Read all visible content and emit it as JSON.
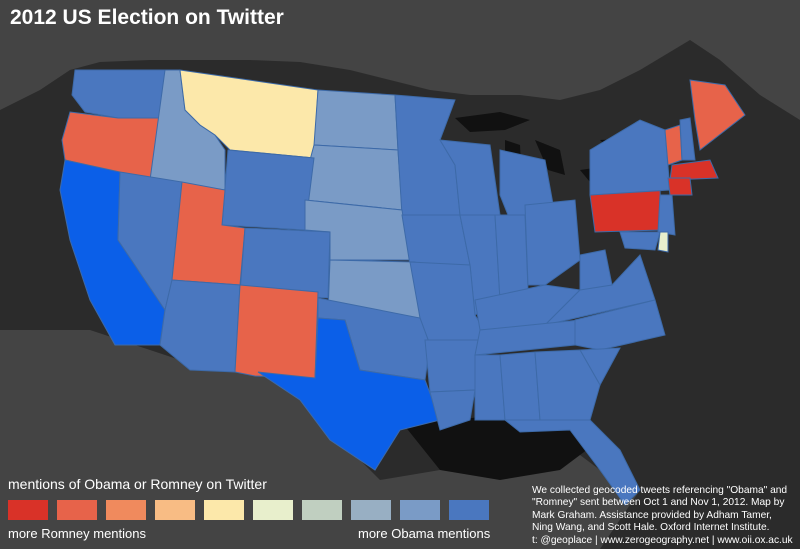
{
  "title": "2012 US Election on Twitter",
  "legend": {
    "title": "mentions of Obama or Romney on Twitter",
    "low_label": "more Romney mentions",
    "high_label": "more Obama mentions",
    "swatches": [
      "#d93228",
      "#e7634a",
      "#f08a5d",
      "#f8bc84",
      "#fce8aa",
      "#e8efcc",
      "#c0cfc0",
      "#98afc3",
      "#7a9bc6",
      "#4a77bf"
    ]
  },
  "credits": [
    "We collected geocoded tweets referencing \"Obama\" and",
    "\"Romney\" sent between Oct 1 and Nov 1, 2012. Map by",
    "Mark Graham. Assistance provided by Adham Tamer,",
    "Ning Wang, and Scott Hale. Oxford Internet Institute.",
    "t: @geoplace | www.zerogeography.net | www.oii.ox.ac.uk"
  ],
  "colors": {
    "background": "#2b2b2b",
    "land": "#444444",
    "water": "#111111",
    "state_border": "#3d6aa8",
    "romney_strong": "#d93228",
    "romney": "#e7634a",
    "neutral_warm": "#fce8aa",
    "obama_light": "#7a9bc6",
    "obama": "#4a77bf",
    "obama_strong": "#0b5fe8"
  },
  "states": {
    "WA": "#4a77bf",
    "OR": "#e7634a",
    "ID": "#7a9bc6",
    "MT": "#fce8aa",
    "ND": "#7a9bc6",
    "SD": "#7a9bc6",
    "MN": "#4a77bf",
    "WI": "#4a77bf",
    "MI": "#4a77bf",
    "WY": "#4a77bf",
    "NE": "#7a9bc6",
    "IA": "#4a77bf",
    "IL": "#4a77bf",
    "IN": "#4a77bf",
    "OH": "#4a77bf",
    "CA": "#0b5fe8",
    "NV": "#4a77bf",
    "UT": "#e7634a",
    "CO": "#4a77bf",
    "KS": "#7a9bc6",
    "MO": "#4a77bf",
    "KY": "#4a77bf",
    "WV": "#4a77bf",
    "VA": "#4a77bf",
    "AZ": "#4a77bf",
    "NM": "#e7634a",
    "OK": "#4a77bf",
    "TX": "#0b5fe8",
    "AR": "#4a77bf",
    "TN": "#4a77bf",
    "NC": "#4a77bf",
    "SC": "#4a77bf",
    "LA": "#4a77bf",
    "MS": "#4a77bf",
    "AL": "#4a77bf",
    "GA": "#4a77bf",
    "FL": "#4a77bf",
    "PA": "#d93228",
    "NY": "#4a77bf",
    "VT": "#e7634a",
    "NH": "#4a77bf",
    "ME": "#e7634a",
    "MA": "#d93228",
    "CT": "#d93228",
    "NJ": "#4a77bf",
    "MD": "#4a77bf",
    "DE": "#e8efcc"
  }
}
